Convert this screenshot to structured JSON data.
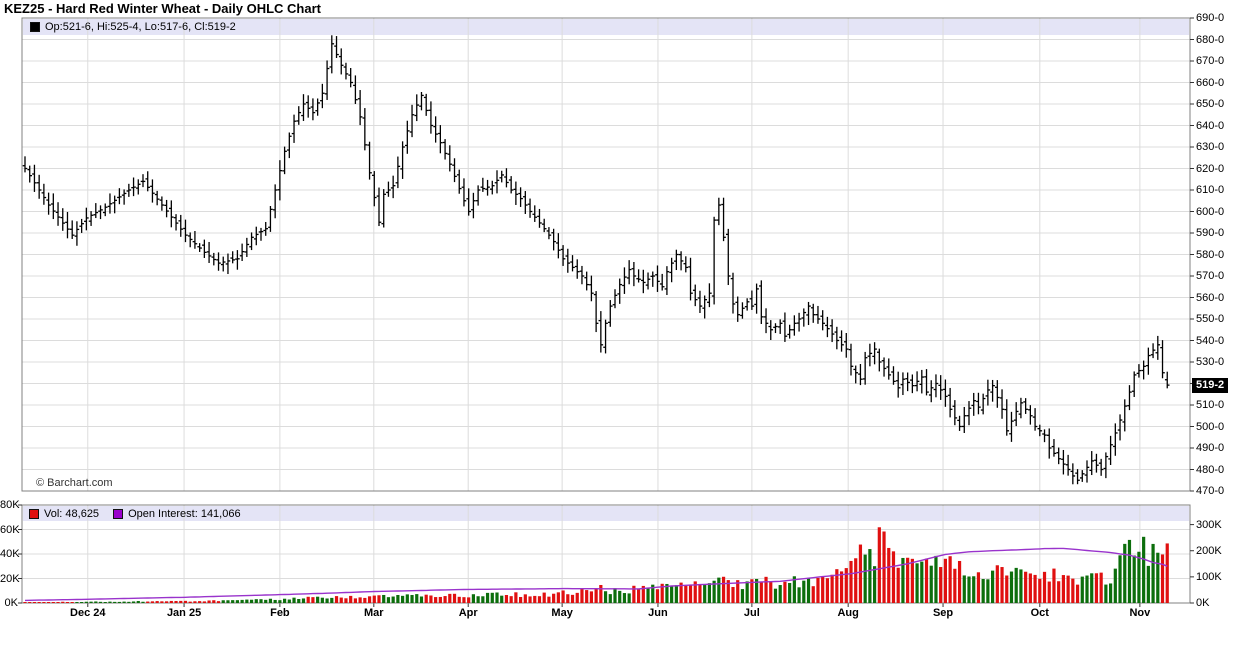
{
  "title": "KEZ25 - Hard Red Winter Wheat - Daily OHLC Chart",
  "watermark": "© Barchart.com",
  "main_legend": {
    "label": "Op:521-6, Hi:525-4, Lo:517-6, Cl:519-2"
  },
  "volume_legend": {
    "vol_label": "Vol: 48,625",
    "oi_label": "Open Interest: 141,066"
  },
  "price_axis": {
    "range": [
      470,
      690
    ],
    "step": 10,
    "labels": [
      {
        "v": 690,
        "t": "690-0"
      },
      {
        "v": 680,
        "t": "680-0"
      },
      {
        "v": 670,
        "t": "670-0"
      },
      {
        "v": 660,
        "t": "660-0"
      },
      {
        "v": 650,
        "t": "650-0"
      },
      {
        "v": 640,
        "t": "640-0"
      },
      {
        "v": 630,
        "t": "630-0"
      },
      {
        "v": 620,
        "t": "620-0"
      },
      {
        "v": 610,
        "t": "610-0"
      },
      {
        "v": 600,
        "t": "600-0"
      },
      {
        "v": 590,
        "t": "590-0"
      },
      {
        "v": 580,
        "t": "580-0"
      },
      {
        "v": 570,
        "t": "570-0"
      },
      {
        "v": 560,
        "t": "560-0"
      },
      {
        "v": 550,
        "t": "550-0"
      },
      {
        "v": 540,
        "t": "540-0"
      },
      {
        "v": 530,
        "t": "530-0"
      },
      {
        "v": 510,
        "t": "510-0"
      },
      {
        "v": 500,
        "t": "500-0"
      },
      {
        "v": 490,
        "t": "490-0"
      },
      {
        "v": 480,
        "t": "480-0"
      },
      {
        "v": 470,
        "t": "470-0"
      }
    ],
    "current_price_label": "519-2",
    "current_price_value": 519.25
  },
  "volume_axis_left": {
    "range_k": [
      0,
      80
    ],
    "labels": [
      {
        "v": 80,
        "t": "80K"
      },
      {
        "v": 60,
        "t": "60K"
      },
      {
        "v": 40,
        "t": "40K"
      },
      {
        "v": 20,
        "t": "20K"
      },
      {
        "v": 0,
        "t": "0K"
      }
    ]
  },
  "volume_axis_right": {
    "max_k": 375,
    "labels": [
      {
        "v": 300,
        "t": "300K"
      },
      {
        "v": 200,
        "t": "200K"
      },
      {
        "v": 100,
        "t": "100K"
      },
      {
        "v": 0,
        "t": "0K"
      }
    ]
  },
  "x_axis": {
    "months": [
      {
        "t": "Dec 24",
        "i": 13.3
      },
      {
        "t": "Jan 25",
        "i": 33.7
      },
      {
        "t": "Feb",
        "i": 54.0
      },
      {
        "t": "Mar",
        "i": 73.9
      },
      {
        "t": "Apr",
        "i": 93.9
      },
      {
        "t": "May",
        "i": 113.8
      },
      {
        "t": "Jun",
        "i": 134.1
      },
      {
        "t": "Jul",
        "i": 154.0
      },
      {
        "t": "Aug",
        "i": 174.4
      },
      {
        "t": "Sep",
        "i": 194.5
      },
      {
        "t": "Oct",
        "i": 215.0
      },
      {
        "t": "Nov",
        "i": 236.2
      }
    ]
  },
  "colors": {
    "ohlc_bar": "#000000",
    "volume_up": "#0c6e0c",
    "volume_down": "#e01010",
    "open_interest_line": "#9933cc",
    "legend_band": "#e4e4f6",
    "grid": "#dcdcdc",
    "panel_border": "#808080",
    "tick": "#333333",
    "price_badge_bg": "#000000",
    "price_badge_text": "#ffffff"
  },
  "chart_data": {
    "type": "ohlc",
    "symbol": "KEZ25",
    "description": "Hard Red Winter Wheat daily OHLC with volume and open interest subpanel",
    "num_bars": 243,
    "price_range": [
      470,
      690
    ],
    "last_bar": {
      "open": 521.75,
      "high": 525.5,
      "low": 517.75,
      "close": 519.25
    },
    "close_keyframes": [
      [
        0,
        620
      ],
      [
        3,
        610
      ],
      [
        5,
        603
      ],
      [
        10,
        589
      ],
      [
        13,
        597
      ],
      [
        17,
        602
      ],
      [
        22,
        610
      ],
      [
        25,
        614
      ],
      [
        29,
        603
      ],
      [
        34,
        589
      ],
      [
        38,
        581
      ],
      [
        41,
        576
      ],
      [
        45,
        578
      ],
      [
        48,
        588
      ],
      [
        51,
        592
      ],
      [
        55,
        628
      ],
      [
        57,
        642
      ],
      [
        59,
        650
      ],
      [
        61,
        646
      ],
      [
        63,
        655
      ],
      [
        65,
        678
      ],
      [
        67,
        668
      ],
      [
        69,
        660
      ],
      [
        71,
        644
      ],
      [
        73,
        618
      ],
      [
        75,
        595
      ],
      [
        76,
        608
      ],
      [
        78,
        612
      ],
      [
        80,
        630
      ],
      [
        82,
        645
      ],
      [
        84,
        654
      ],
      [
        86,
        640
      ],
      [
        88,
        632
      ],
      [
        90,
        622
      ],
      [
        93,
        605
      ],
      [
        94,
        600
      ],
      [
        96,
        610
      ],
      [
        99,
        612
      ],
      [
        101,
        617
      ],
      [
        103,
        610
      ],
      [
        105,
        606
      ],
      [
        107,
        600
      ],
      [
        110,
        592
      ],
      [
        112,
        586
      ],
      [
        114,
        578
      ],
      [
        116,
        574
      ],
      [
        118,
        570
      ],
      [
        120,
        562
      ],
      [
        121,
        548
      ],
      [
        122,
        538
      ],
      [
        123,
        548
      ],
      [
        124,
        556
      ],
      [
        126,
        566
      ],
      [
        128,
        573
      ],
      [
        129,
        570
      ],
      [
        131,
        567
      ],
      [
        133,
        570
      ],
      [
        135,
        565
      ],
      [
        136,
        572
      ],
      [
        138,
        580
      ],
      [
        140,
        574
      ],
      [
        141,
        562
      ],
      [
        143,
        556
      ],
      [
        145,
        562
      ],
      [
        146,
        596
      ],
      [
        147,
        603
      ],
      [
        148,
        588
      ],
      [
        149,
        570
      ],
      [
        150,
        557
      ],
      [
        151,
        552
      ],
      [
        153,
        558
      ],
      [
        154,
        556
      ],
      [
        155,
        564
      ],
      [
        156,
        551
      ],
      [
        158,
        545
      ],
      [
        160,
        548
      ],
      [
        161,
        542
      ],
      [
        163,
        548
      ],
      [
        164,
        550
      ],
      [
        166,
        556
      ],
      [
        167,
        552
      ],
      [
        169,
        548
      ],
      [
        171,
        543
      ],
      [
        172,
        540
      ],
      [
        174,
        536
      ],
      [
        175,
        528
      ],
      [
        177,
        522
      ],
      [
        178,
        532
      ],
      [
        180,
        536
      ],
      [
        181,
        530
      ],
      [
        183,
        524
      ],
      [
        185,
        518
      ],
      [
        186,
        522
      ],
      [
        188,
        519
      ],
      [
        190,
        523
      ],
      [
        191,
        516
      ],
      [
        193,
        520
      ],
      [
        195,
        514
      ],
      [
        196,
        508
      ],
      [
        198,
        500
      ],
      [
        199,
        505
      ],
      [
        201,
        512
      ],
      [
        202,
        509
      ],
      [
        204,
        517
      ],
      [
        205,
        519
      ],
      [
        207,
        508
      ],
      [
        208,
        498
      ],
      [
        210,
        507
      ],
      [
        211,
        511
      ],
      [
        213,
        505
      ],
      [
        214,
        500
      ],
      [
        216,
        496
      ],
      [
        217,
        490
      ],
      [
        219,
        485
      ],
      [
        221,
        480
      ],
      [
        222,
        477
      ],
      [
        223,
        475
      ],
      [
        225,
        481
      ],
      [
        226,
        484
      ],
      [
        228,
        480
      ],
      [
        229,
        486
      ],
      [
        231,
        497
      ],
      [
        232,
        503
      ],
      [
        234,
        516
      ],
      [
        235,
        524
      ],
      [
        237,
        528
      ],
      [
        238,
        533
      ],
      [
        240,
        538
      ],
      [
        241,
        525
      ],
      [
        242,
        519.25
      ]
    ],
    "volume": {
      "type": "bar",
      "last_value": 48625,
      "keyframes_k": [
        [
          0,
          0.5
        ],
        [
          13,
          1
        ],
        [
          34,
          1.5
        ],
        [
          45,
          2
        ],
        [
          54,
          3
        ],
        [
          60,
          4
        ],
        [
          65,
          4.5
        ],
        [
          74,
          5
        ],
        [
          80,
          6
        ],
        [
          94,
          6
        ],
        [
          100,
          7
        ],
        [
          110,
          7
        ],
        [
          114,
          8
        ],
        [
          120,
          10
        ],
        [
          122,
          12
        ],
        [
          124,
          10
        ],
        [
          134,
          12
        ],
        [
          140,
          14
        ],
        [
          145,
          13
        ],
        [
          147,
          20
        ],
        [
          150,
          16
        ],
        [
          154,
          15
        ],
        [
          158,
          17
        ],
        [
          161,
          15
        ],
        [
          164,
          18
        ],
        [
          166,
          20
        ],
        [
          169,
          18
        ],
        [
          171,
          20
        ],
        [
          174,
          25
        ],
        [
          176,
          32
        ],
        [
          178,
          45
        ],
        [
          180,
          42
        ],
        [
          182,
          62
        ],
        [
          183,
          45
        ],
        [
          184,
          38
        ],
        [
          186,
          30
        ],
        [
          188,
          35
        ],
        [
          190,
          38
        ],
        [
          192,
          30
        ],
        [
          195,
          33
        ],
        [
          197,
          28
        ],
        [
          200,
          25
        ],
        [
          203,
          27
        ],
        [
          205,
          22
        ],
        [
          207,
          28
        ],
        [
          210,
          24
        ],
        [
          213,
          20
        ],
        [
          216,
          26
        ],
        [
          218,
          22
        ],
        [
          221,
          25
        ],
        [
          223,
          18
        ],
        [
          225,
          22
        ],
        [
          228,
          26
        ],
        [
          230,
          15
        ],
        [
          232,
          30
        ],
        [
          234,
          45
        ],
        [
          235,
          50
        ],
        [
          236,
          58
        ],
        [
          237,
          45
        ],
        [
          238,
          40
        ],
        [
          239,
          52
        ],
        [
          240,
          38
        ],
        [
          241,
          46
        ],
        [
          242,
          48.6
        ]
      ]
    },
    "open_interest": {
      "type": "line",
      "last_value": 141066,
      "keyframes_k": [
        [
          0,
          10
        ],
        [
          13,
          14
        ],
        [
          34,
          22
        ],
        [
          54,
          32
        ],
        [
          65,
          38
        ],
        [
          74,
          44
        ],
        [
          94,
          52
        ],
        [
          114,
          55
        ],
        [
          130,
          54
        ],
        [
          137,
          65
        ],
        [
          145,
          72
        ],
        [
          154,
          79
        ],
        [
          160,
          83
        ],
        [
          168,
          99
        ],
        [
          175,
          112
        ],
        [
          181,
          131
        ],
        [
          187,
          150
        ],
        [
          195,
          186
        ],
        [
          200,
          196
        ],
        [
          205,
          200
        ],
        [
          211,
          204
        ],
        [
          216,
          208
        ],
        [
          220,
          209
        ],
        [
          225,
          201
        ],
        [
          230,
          193
        ],
        [
          234,
          183
        ],
        [
          237,
          168
        ],
        [
          239,
          155
        ],
        [
          241,
          148
        ],
        [
          242,
          141
        ]
      ]
    }
  }
}
